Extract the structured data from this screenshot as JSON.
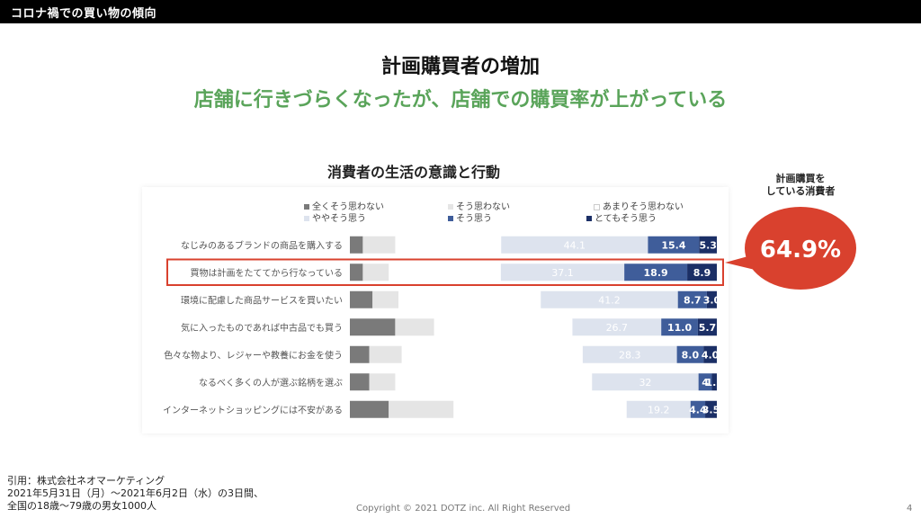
{
  "header": {
    "label": "コロナ禍での買い物の傾向"
  },
  "title": "計画購買者の増加",
  "subtitle": "店舗に行きづらくなったが、店舗での購買率が上がっている",
  "callout": {
    "label_line1": "計画購買を",
    "label_line2": "している消費者",
    "value": "64.9%",
    "color": "#d9412e"
  },
  "footer": {
    "line1": "引用：株式会社ネオマーケティング",
    "line2": "2021年5月31日（月）～2021年6月2日（水）の3日間、",
    "line3": "全国の18歳～79歳の男女1000人",
    "copyright": "Copyright © 2021 DOTZ inc. All Right Reserved",
    "page": "4"
  },
  "chart_data": {
    "type": "bar",
    "title": "消費者の生活の意識と行動",
    "legend": [
      {
        "name": "全くそう思わない",
        "color": "#7a7a7a"
      },
      {
        "name": "そう思わない",
        "color": "#e5e5e5"
      },
      {
        "name": "あまりそう思わない",
        "color": "#ffffff"
      },
      {
        "name": "ややそう思う",
        "color": "#dde3ee"
      },
      {
        "name": "そう思う",
        "color": "#3f5d9a"
      },
      {
        "name": "とてもそう思う",
        "color": "#1b2f66"
      }
    ],
    "categories": [
      "なじみのあるブランドの商品を購入する",
      "買物は計画をたててから行なっている",
      "環境に配慮した商品サービスを買いたい",
      "気に入ったものであれば中古品でも買う",
      "色々な物より、レジャーや教養にお金を使う",
      "なるべく多くの人が選ぶ銘柄を選ぶ",
      "インターネットショッピングには不安がある"
    ],
    "highlight_index": 1,
    "series": [
      {
        "name": "全くそう思わない",
        "values": [
          4,
          4,
          7,
          14,
          6,
          6,
          12
        ]
      },
      {
        "name": "そう思わない",
        "values": [
          10,
          8,
          8,
          12,
          10,
          8,
          20
        ]
      },
      {
        "name": "ややそう思う",
        "values": [
          44.1,
          37.1,
          41.2,
          26.7,
          28.3,
          32,
          19.2
        ]
      },
      {
        "name": "そう思う",
        "values": [
          15.4,
          18.9,
          8.7,
          11.0,
          8.0,
          4,
          4.4
        ]
      },
      {
        "name": "とてもそう思う",
        "values": [
          5.3,
          8.9,
          3.0,
          5.7,
          4.0,
          1.5,
          3.5
        ]
      }
    ],
    "label_texts": [
      [
        "44.1",
        "15.4",
        "5.3"
      ],
      [
        "37.1",
        "18.9",
        "8.9"
      ],
      [
        "41.2",
        "8.7",
        "3.0"
      ],
      [
        "26.7",
        "11.0",
        "5.7"
      ],
      [
        "28.3",
        "8.0",
        "4.0"
      ],
      [
        "32",
        "4",
        "1.5"
      ],
      [
        "19.2",
        "4.4",
        "3.5"
      ]
    ]
  }
}
